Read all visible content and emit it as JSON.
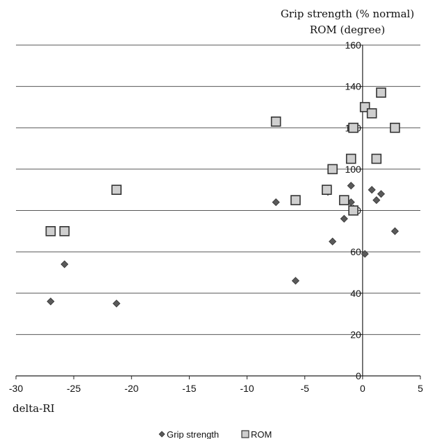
{
  "chart_data": {
    "type": "scatter",
    "title_lines": [
      "Grip strength (% normal)",
      "ROM (degree)"
    ],
    "xlabel": "delta-RI",
    "ylabel": "",
    "xlim": [
      -30,
      5
    ],
    "ylim": [
      0,
      160
    ],
    "x_ticks": [
      -30,
      -25,
      -20,
      -15,
      -10,
      -5,
      0,
      5
    ],
    "y_ticks": [
      0,
      20,
      40,
      60,
      80,
      100,
      120,
      140,
      160
    ],
    "grid": "horizontal",
    "legend_position": "bottom",
    "series": [
      {
        "name": "Grip strength",
        "marker": "diamond",
        "color": "#5a5a5a",
        "points": [
          {
            "x": -27.0,
            "y": 36
          },
          {
            "x": -25.8,
            "y": 54
          },
          {
            "x": -21.3,
            "y": 35
          },
          {
            "x": -7.5,
            "y": 84
          },
          {
            "x": -5.8,
            "y": 46
          },
          {
            "x": -3.0,
            "y": 89
          },
          {
            "x": -2.6,
            "y": 65
          },
          {
            "x": -1.6,
            "y": 76
          },
          {
            "x": -1.0,
            "y": 92
          },
          {
            "x": -1.0,
            "y": 84
          },
          {
            "x": -0.8,
            "y": 81
          },
          {
            "x": 0.2,
            "y": 59
          },
          {
            "x": 0.8,
            "y": 90
          },
          {
            "x": 1.2,
            "y": 85
          },
          {
            "x": 1.6,
            "y": 88
          },
          {
            "x": 2.8,
            "y": 70
          }
        ]
      },
      {
        "name": "ROM",
        "marker": "square",
        "color": "#cfcfcf",
        "points": [
          {
            "x": -27.0,
            "y": 70
          },
          {
            "x": -25.8,
            "y": 70
          },
          {
            "x": -21.3,
            "y": 90
          },
          {
            "x": -7.5,
            "y": 123
          },
          {
            "x": -5.8,
            "y": 85
          },
          {
            "x": -3.1,
            "y": 90
          },
          {
            "x": -2.6,
            "y": 100
          },
          {
            "x": -1.6,
            "y": 85
          },
          {
            "x": -1.0,
            "y": 105
          },
          {
            "x": -0.8,
            "y": 120
          },
          {
            "x": -0.8,
            "y": 80
          },
          {
            "x": 0.2,
            "y": 130
          },
          {
            "x": 0.8,
            "y": 127
          },
          {
            "x": 1.2,
            "y": 105
          },
          {
            "x": 1.6,
            "y": 137
          },
          {
            "x": 2.8,
            "y": 120
          }
        ]
      }
    ]
  }
}
